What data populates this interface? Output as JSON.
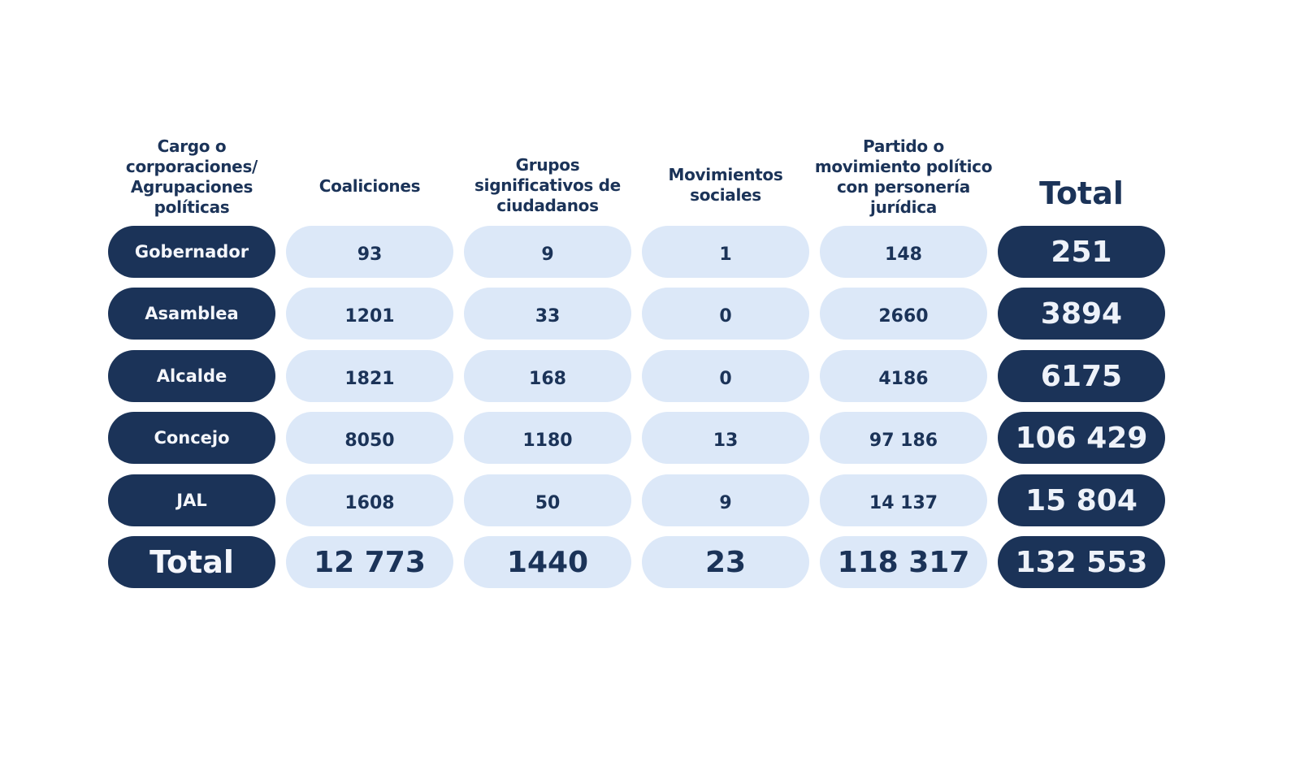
{
  "chart_data": {
    "type": "table",
    "columns": [
      "Cargo o corporaciones/ Agrupaciones políticas",
      "Coaliciones",
      "Grupos significativos de ciudadanos",
      "Movimientos sociales",
      "Partido o movimiento político con personería jurídica",
      "Total"
    ],
    "header_lines": [
      [
        "Cargo o",
        "corporaciones/",
        "Agrupaciones",
        "políticas"
      ],
      [
        "Coaliciones"
      ],
      [
        "Grupos",
        "significativos de",
        "ciudadanos"
      ],
      [
        "Movimientos",
        "sociales"
      ],
      [
        "Partido o",
        "movimiento político",
        "con personería",
        "jurídica"
      ],
      [
        "Total"
      ]
    ],
    "rows": [
      {
        "label": "Gobernador",
        "values": [
          "93",
          "9",
          "1",
          "148"
        ],
        "total": "251"
      },
      {
        "label": "Asamblea",
        "values": [
          "1201",
          "33",
          "0",
          "2660"
        ],
        "total": "3894"
      },
      {
        "label": "Alcalde",
        "values": [
          "1821",
          "168",
          "0",
          "4186"
        ],
        "total": "6175"
      },
      {
        "label": "Concejo",
        "values": [
          "8050",
          "1180",
          "13",
          "97 186"
        ],
        "total": "106 429"
      },
      {
        "label": "JAL",
        "values": [
          "1608",
          "50",
          "9",
          "14 137"
        ],
        "total": "15 804"
      },
      {
        "label": "Total",
        "values": [
          "12 773",
          "1440",
          "23",
          "118 317"
        ],
        "total": "132 553"
      }
    ]
  },
  "colors": {
    "dark_navy": "#1b3358",
    "light_blue": "#dce8f8",
    "background": "#ffffff"
  }
}
